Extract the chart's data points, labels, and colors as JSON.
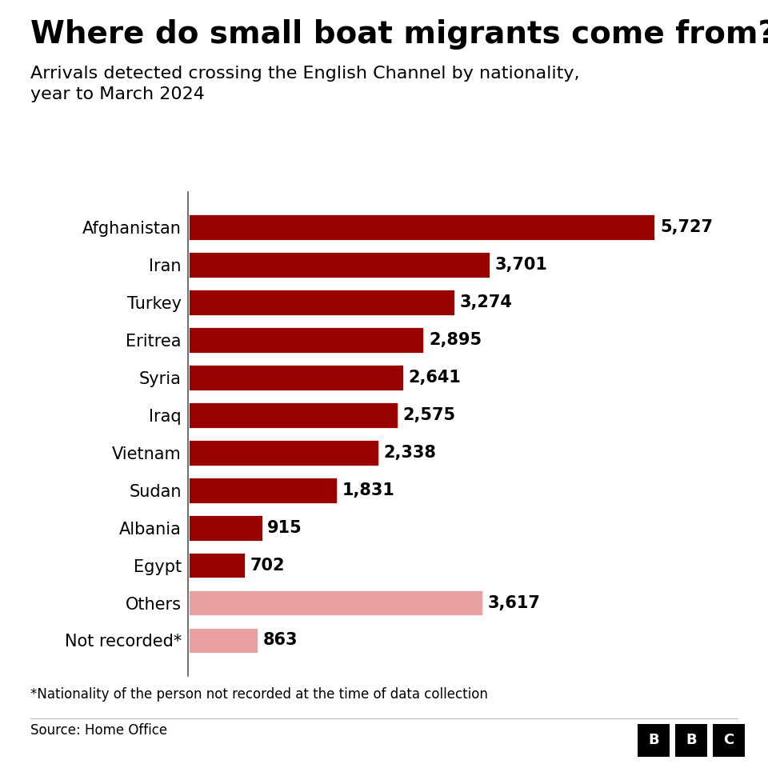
{
  "title": "Where do small boat migrants come from?",
  "subtitle": "Arrivals detected crossing the English Channel by nationality,\nyear to March 2024",
  "categories": [
    "Afghanistan",
    "Iran",
    "Turkey",
    "Eritrea",
    "Syria",
    "Iraq",
    "Vietnam",
    "Sudan",
    "Albania",
    "Egypt",
    "Others",
    "Not recorded*"
  ],
  "values": [
    5727,
    3701,
    3274,
    2895,
    2641,
    2575,
    2338,
    1831,
    915,
    702,
    3617,
    863
  ],
  "bar_colors": [
    "#990000",
    "#990000",
    "#990000",
    "#990000",
    "#990000",
    "#990000",
    "#990000",
    "#990000",
    "#990000",
    "#990000",
    "#e8a0a0",
    "#e8a0a0"
  ],
  "footnote": "*Nationality of the person not recorded at the time of data collection",
  "source": "Source: Home Office",
  "background_color": "#ffffff",
  "text_color": "#000000",
  "title_fontsize": 28,
  "subtitle_fontsize": 16,
  "label_fontsize": 15,
  "value_fontsize": 15,
  "xlim": [
    0,
    6400
  ]
}
